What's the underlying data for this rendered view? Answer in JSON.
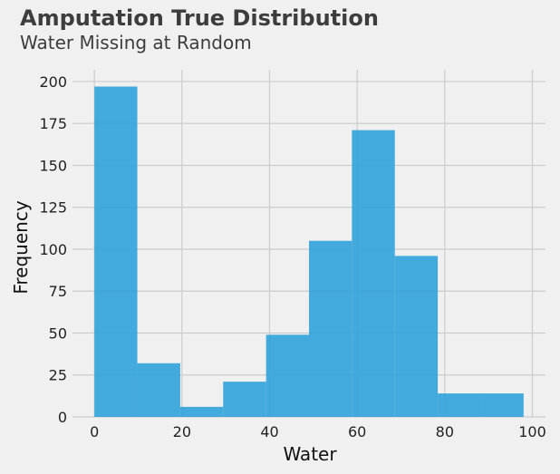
{
  "title": "Amputation True Distribution",
  "subtitle": "Water Missing at Random",
  "chart_data": {
    "type": "bar",
    "title": "Amputation True Distribution",
    "subtitle": "Water Missing at Random",
    "xlabel": "Water",
    "ylabel": "Frequency",
    "bin_edges": [
      0,
      9.8,
      19.6,
      29.4,
      39.2,
      49,
      58.8,
      68.6,
      78.4,
      88.2,
      98
    ],
    "values": [
      197,
      32,
      6,
      21,
      49,
      105,
      171,
      96,
      14,
      14
    ],
    "xlim": [
      -5,
      103
    ],
    "ylim": [
      0,
      207
    ],
    "xticks": [
      0,
      20,
      40,
      60,
      80,
      100
    ],
    "yticks": [
      0,
      25,
      50,
      75,
      100,
      125,
      150,
      175,
      200
    ],
    "grid": true,
    "bar_color": "#30a2da"
  }
}
